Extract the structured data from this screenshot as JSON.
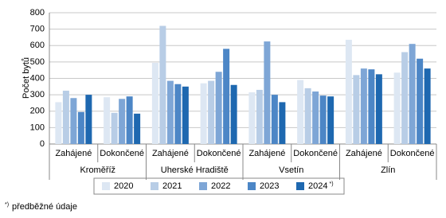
{
  "chart_data": {
    "type": "bar",
    "y_label": "Počet bytů",
    "groups": [
      "Kroměříž",
      "Uherské Hradiště",
      "Vsetín",
      "Zlín"
    ],
    "categories": [
      "Zahájené",
      "Dokončené",
      "Zahájené",
      "Dokončené",
      "Zahájené",
      "Dokončené",
      "Zahájené",
      "Dokončené"
    ],
    "series": [
      {
        "name": "2020",
        "color": "#dde7f3",
        "values": [
          255,
          285,
          495,
          370,
          315,
          390,
          635,
          435
        ]
      },
      {
        "name": "2021",
        "color": "#b8cde6",
        "values": [
          325,
          190,
          720,
          385,
          330,
          340,
          420,
          560
        ]
      },
      {
        "name": "2022",
        "color": "#7ea6d6",
        "values": [
          280,
          275,
          385,
          440,
          625,
          320,
          460,
          610
        ]
      },
      {
        "name": "2023",
        "color": "#4c86c6",
        "values": [
          195,
          290,
          365,
          580,
          300,
          295,
          455,
          520
        ]
      },
      {
        "name": "2024",
        "color": "#1e68b0",
        "values": [
          300,
          185,
          350,
          360,
          255,
          290,
          425,
          460
        ]
      }
    ],
    "legend_note": "*)",
    "ylim": [
      0,
      800
    ],
    "yticks": [
      0,
      100,
      200,
      300,
      400,
      500,
      600,
      700,
      800
    ],
    "grid": true,
    "footnote": {
      "marker": "*)",
      "text": "předběžné údaje"
    }
  }
}
